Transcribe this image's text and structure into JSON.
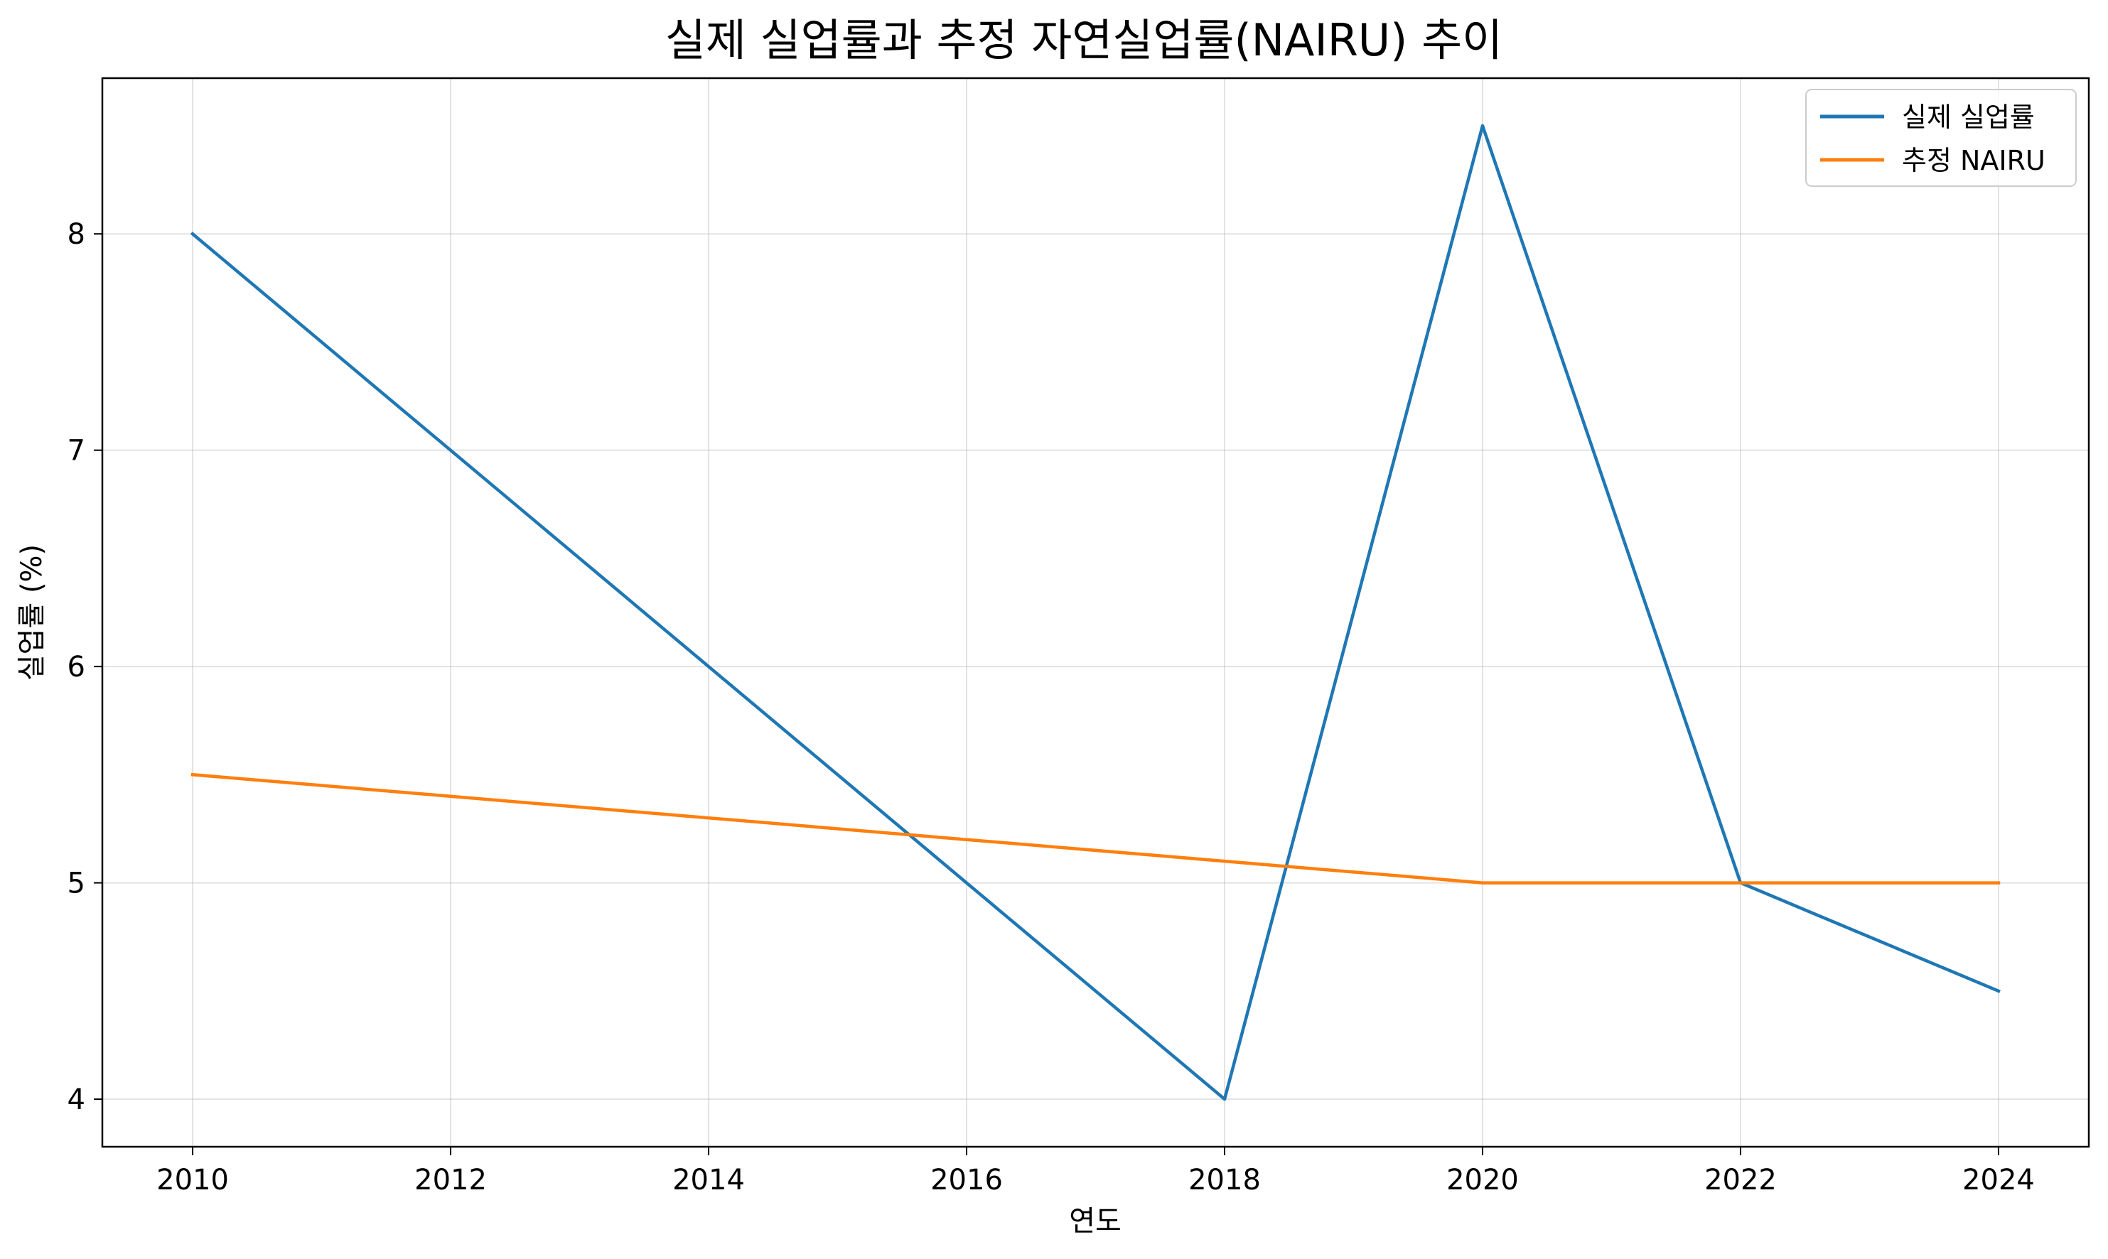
{
  "chart_data": {
    "type": "line",
    "title": "실제 실업률과 추정 자연실업률(NAIRU) 추이",
    "xlabel": "연도",
    "ylabel": "실업률 (%)",
    "x": [
      2010,
      2012,
      2014,
      2016,
      2018,
      2020,
      2022,
      2024
    ],
    "xlim": [
      2009.3,
      2024.7
    ],
    "ylim": [
      3.78,
      8.72
    ],
    "xticks": [
      "2010",
      "2012",
      "2014",
      "2016",
      "2018",
      "2020",
      "2022",
      "2024"
    ],
    "yticks": [
      "4",
      "5",
      "6",
      "7",
      "8"
    ],
    "grid": true,
    "legend_position": "top-right",
    "series": [
      {
        "name": "실제 실업률",
        "color": "#1f77b4",
        "values": [
          8.0,
          7.0,
          6.0,
          5.0,
          4.0,
          8.5,
          5.0,
          4.5
        ]
      },
      {
        "name": "추정 NAIRU",
        "color": "#ff7f0e",
        "values": [
          5.5,
          5.4,
          5.3,
          5.2,
          5.1,
          5.0,
          5.0,
          5.0
        ]
      }
    ]
  }
}
